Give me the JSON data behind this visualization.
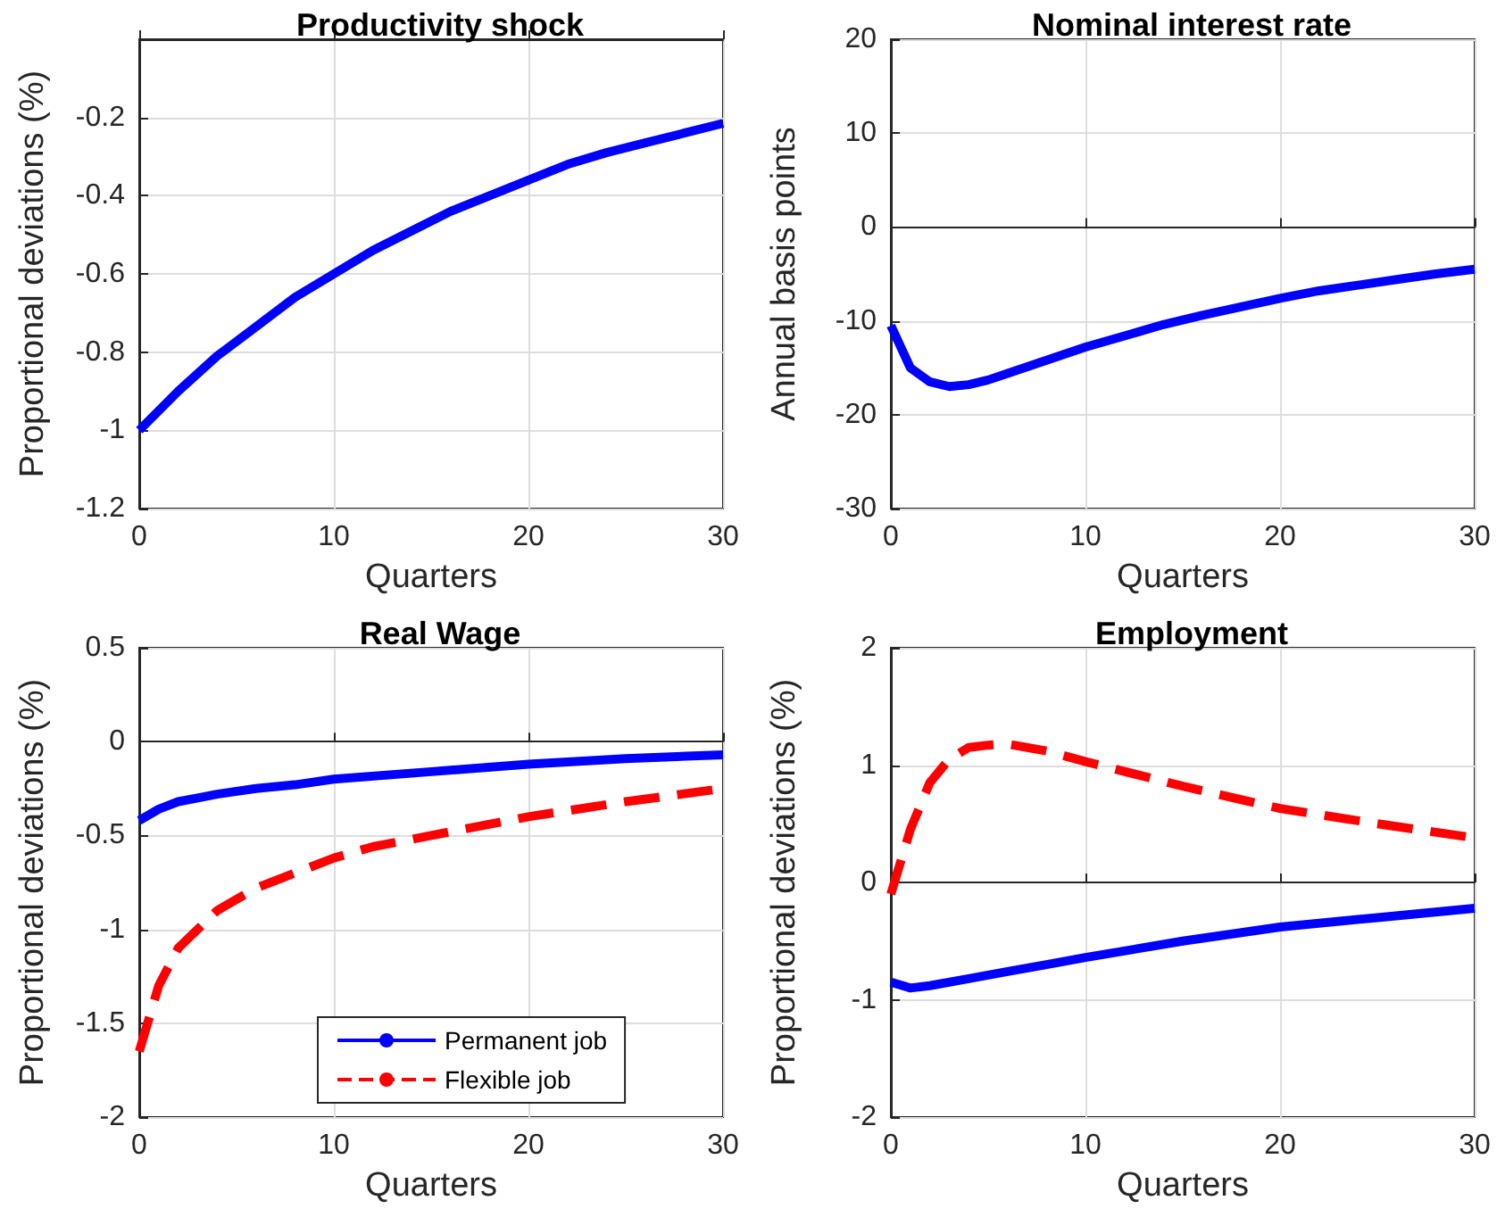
{
  "chart_data": [
    {
      "type": "line",
      "title": "Productivity shock",
      "xlabel": "Quarters",
      "ylabel": "Proportional deviations (%)",
      "xlim": [
        0,
        30
      ],
      "xticks": [
        0,
        10,
        20,
        30
      ],
      "ylim": [
        -1.2,
        0
      ],
      "yticks": [
        -1.2,
        -1,
        -0.8,
        -0.6,
        -0.4,
        -0.2
      ],
      "grid": true,
      "marker": "none",
      "legend": false,
      "series": [
        {
          "color": "#0000ff",
          "line_style": "solid",
          "x": [
            0,
            2,
            4,
            6,
            8,
            10,
            12,
            14,
            16,
            18,
            20,
            22,
            24,
            26,
            28,
            30
          ],
          "values": [
            -1,
            -0.9,
            -0.81,
            -0.735,
            -0.66,
            -0.6,
            -0.54,
            -0.49,
            -0.44,
            -0.4,
            -0.36,
            -0.32,
            -0.29,
            -0.265,
            -0.24,
            -0.215
          ]
        }
      ]
    },
    {
      "type": "line",
      "title": "Nominal interest rate",
      "xlabel": "Quarters",
      "ylabel": "Annual basis points",
      "xlim": [
        0,
        30
      ],
      "xticks": [
        0,
        10,
        20,
        30
      ],
      "ylim": [
        -30,
        20
      ],
      "yticks": [
        -30,
        -20,
        -10,
        0,
        10,
        20
      ],
      "grid": true,
      "marker": "none",
      "legend": false,
      "series": [
        {
          "color": "#0000ff",
          "line_style": "solid",
          "x": [
            0,
            1,
            2,
            3,
            4,
            5,
            6,
            8,
            10,
            12,
            14,
            16,
            18,
            20,
            22,
            24,
            26,
            28,
            30
          ],
          "values": [
            -10.5,
            -15,
            -16.5,
            -17,
            -16.8,
            -16.3,
            -15.6,
            -14.2,
            -12.8,
            -11.6,
            -10.4,
            -9.4,
            -8.5,
            -7.6,
            -6.8,
            -6.2,
            -5.6,
            -5,
            -4.5
          ]
        }
      ]
    },
    {
      "type": "line",
      "title": "Real Wage",
      "xlabel": "Quarters",
      "ylabel": "Proportional deviations (%)",
      "xlim": [
        0,
        30
      ],
      "xticks": [
        0,
        10,
        20,
        30
      ],
      "ylim": [
        -2,
        0.5
      ],
      "yticks": [
        -2,
        -1.5,
        -1,
        -0.5,
        0,
        0.5
      ],
      "grid": true,
      "marker": "none",
      "legend": "bottom",
      "series": [
        {
          "name": "Permanent job",
          "color": "#0000ff",
          "line_style": "solid",
          "x": [
            0,
            1,
            2,
            3,
            4,
            6,
            8,
            10,
            15,
            20,
            25,
            30
          ],
          "values": [
            -0.42,
            -0.36,
            -0.32,
            -0.3,
            -0.28,
            -0.25,
            -0.23,
            -0.2,
            -0.16,
            -0.12,
            -0.09,
            -0.07
          ]
        },
        {
          "name": "Flexible job",
          "color": "#ff0000",
          "line_style": "dashed",
          "x": [
            0,
            1,
            2,
            3,
            4,
            6,
            8,
            10,
            12,
            15,
            20,
            25,
            30
          ],
          "values": [
            -1.65,
            -1.3,
            -1.1,
            -1,
            -0.9,
            -0.78,
            -0.7,
            -0.62,
            -0.56,
            -0.5,
            -0.4,
            -0.32,
            -0.25
          ]
        }
      ]
    },
    {
      "type": "line",
      "title": "Employment",
      "xlabel": "Quarters",
      "ylabel": "Proportional deviations (%)",
      "xlim": [
        0,
        30
      ],
      "xticks": [
        0,
        10,
        20,
        30
      ],
      "ylim": [
        -2,
        2
      ],
      "yticks": [
        -2,
        -1,
        0,
        1,
        2
      ],
      "grid": true,
      "marker": "none",
      "legend": false,
      "series": [
        {
          "color": "#0000ff",
          "line_style": "solid",
          "x": [
            0,
            1,
            2,
            4,
            6,
            8,
            10,
            15,
            20,
            25,
            30
          ],
          "values": [
            -0.85,
            -0.9,
            -0.88,
            -0.82,
            -0.76,
            -0.7,
            -0.64,
            -0.5,
            -0.38,
            -0.3,
            -0.22
          ]
        },
        {
          "color": "#ff0000",
          "line_style": "dashed",
          "x": [
            0,
            1,
            2,
            3,
            4,
            5,
            6,
            8,
            10,
            15,
            20,
            25,
            30
          ],
          "values": [
            -0.1,
            0.45,
            0.85,
            1.05,
            1.15,
            1.17,
            1.18,
            1.12,
            1.03,
            0.82,
            0.63,
            0.5,
            0.38
          ]
        }
      ]
    }
  ]
}
